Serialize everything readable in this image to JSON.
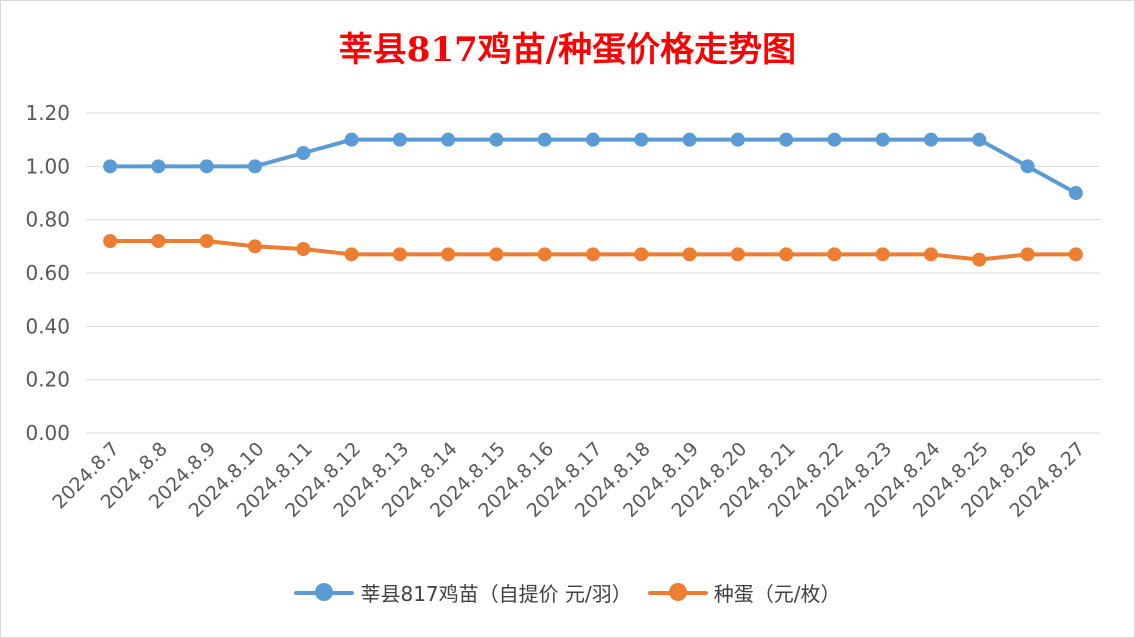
{
  "chart_data": {
    "type": "line",
    "title": "莘县817鸡苗/种蛋价格走势图",
    "categories": [
      "2024.8.7",
      "2024.8.8",
      "2024.8.9",
      "2024.8.10",
      "2024.8.11",
      "2024.8.12",
      "2024.8.13",
      "2024.8.14",
      "2024.8.15",
      "2024.8.16",
      "2024.8.17",
      "2024.8.18",
      "2024.8.19",
      "2024.8.20",
      "2024.8.21",
      "2024.8.22",
      "2024.8.23",
      "2024.8.24",
      "2024.8.25",
      "2024.8.26",
      "2024.8.27"
    ],
    "series": [
      {
        "name": "莘县817鸡苗（自提价 元/羽）",
        "color": "#5b9bd5",
        "values": [
          1.0,
          1.0,
          1.0,
          1.0,
          1.05,
          1.1,
          1.1,
          1.1,
          1.1,
          1.1,
          1.1,
          1.1,
          1.1,
          1.1,
          1.1,
          1.1,
          1.1,
          1.1,
          1.1,
          1.0,
          0.9
        ]
      },
      {
        "name": "种蛋（元/枚）",
        "color": "#ed7d31",
        "values": [
          0.72,
          0.72,
          0.72,
          0.7,
          0.69,
          0.67,
          0.67,
          0.67,
          0.67,
          0.67,
          0.67,
          0.67,
          0.67,
          0.67,
          0.67,
          0.67,
          0.67,
          0.67,
          0.65,
          0.67,
          0.67
        ]
      }
    ],
    "ylim": [
      0,
      1.2
    ],
    "yticks": [
      "0.00",
      "0.20",
      "0.40",
      "0.60",
      "0.80",
      "1.00",
      "1.20"
    ],
    "grid": true,
    "legend_position": "bottom",
    "title_color": "#ff0000",
    "gridline_color": "#d9d9d9",
    "axis_label_color": "#595959"
  }
}
